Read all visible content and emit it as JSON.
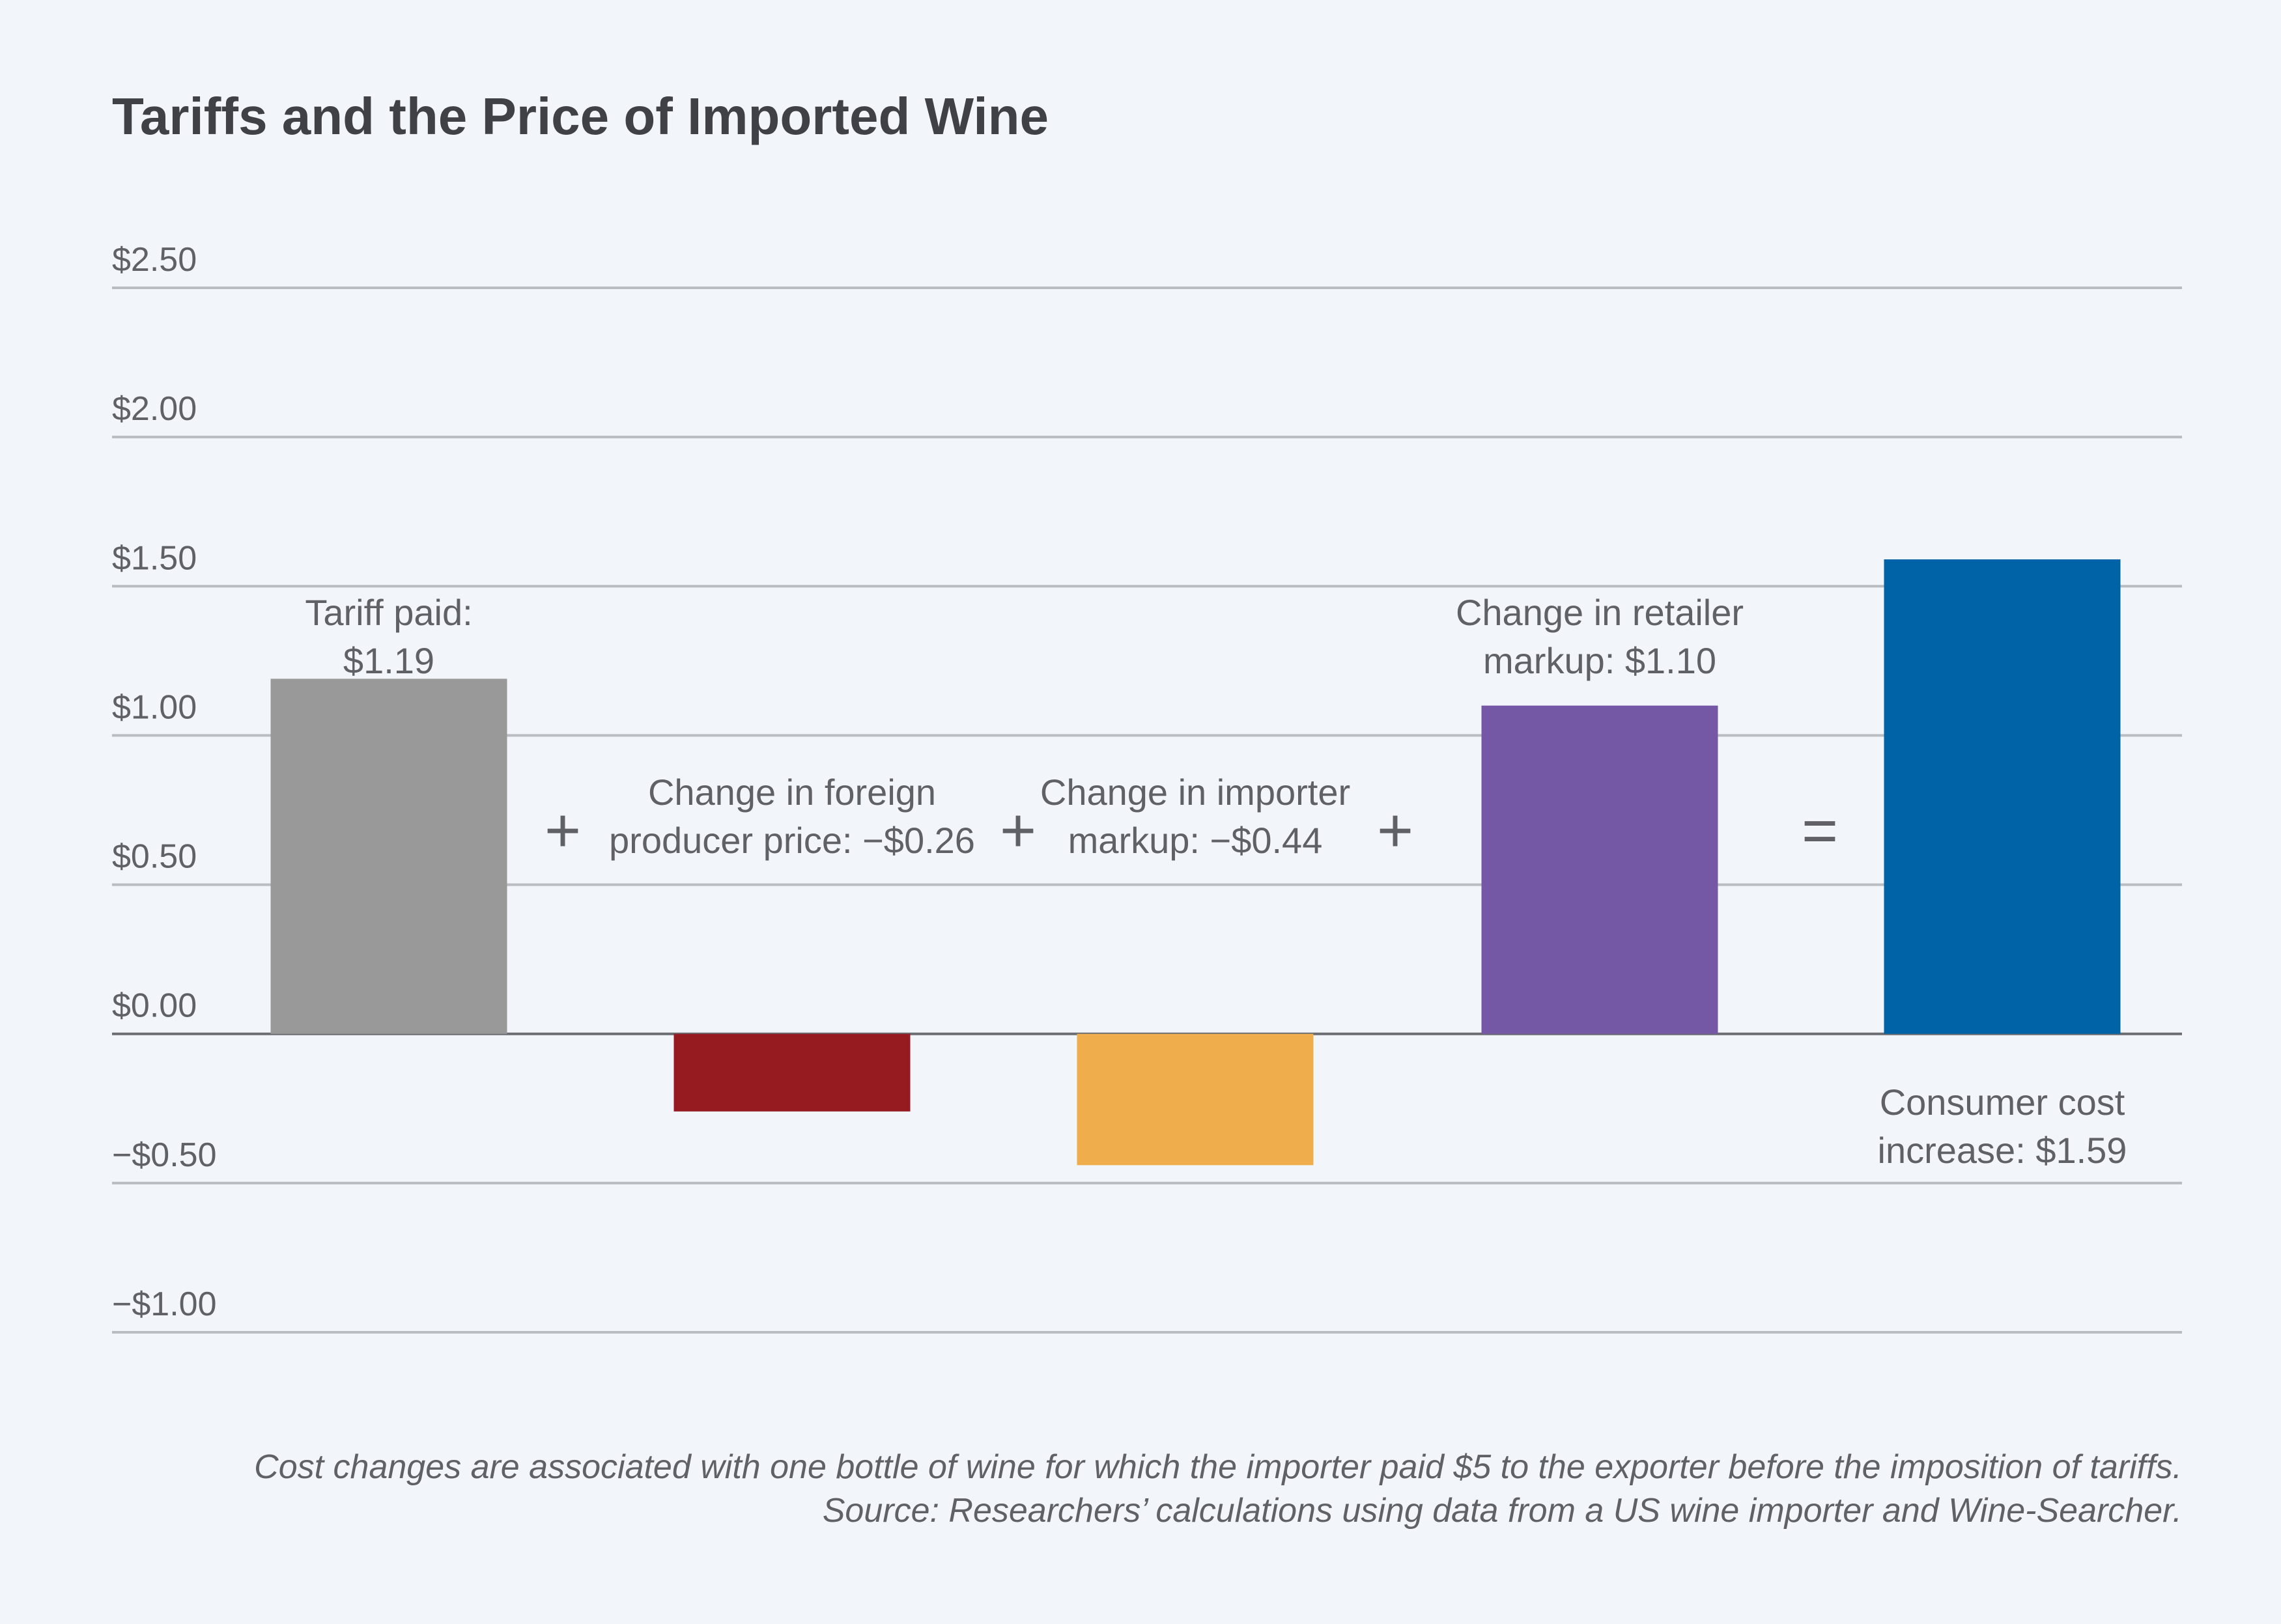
{
  "chart_data": {
    "type": "bar",
    "title": "Tariffs and the Price of Imported Wine",
    "ylim": [
      -1.0,
      2.5
    ],
    "yticks": [
      2.5,
      2.0,
      1.5,
      1.0,
      0.5,
      0.0,
      -0.5,
      -1.0
    ],
    "ytick_labels": [
      "$2.50",
      "$2.00",
      "$1.50",
      "$1.00",
      "$0.50",
      "$0.00",
      "−$0.50",
      "−$1.00"
    ],
    "grid": true,
    "categories": [
      "Tariff paid",
      "Change in foreign producer price",
      "Change in importer markup",
      "Change in retailer markup",
      "Consumer cost increase"
    ],
    "values": [
      1.19,
      -0.26,
      -0.44,
      1.1,
      1.59
    ],
    "colors": [
      "#999999",
      "#951b21",
      "#efae4b",
      "#7458a5",
      "#0063a7"
    ],
    "bar_labels": [
      [
        "Tariff paid:",
        "$1.19"
      ],
      [
        "Change in foreign",
        "producer price: −$0.26"
      ],
      [
        "Change in importer",
        "markup: −$0.44"
      ],
      [
        "Change in retailer",
        "markup: $1.10"
      ],
      [
        "Consumer cost",
        "increase: $1.59"
      ]
    ],
    "operators": [
      "+",
      "+",
      "+",
      "="
    ],
    "notes": [
      "Cost changes are associated with one bottle of wine for which the importer paid $5 to the exporter before the imposition of tariffs.",
      "Source: Researchers’ calculations using data from a US wine importer and Wine-Searcher."
    ]
  }
}
